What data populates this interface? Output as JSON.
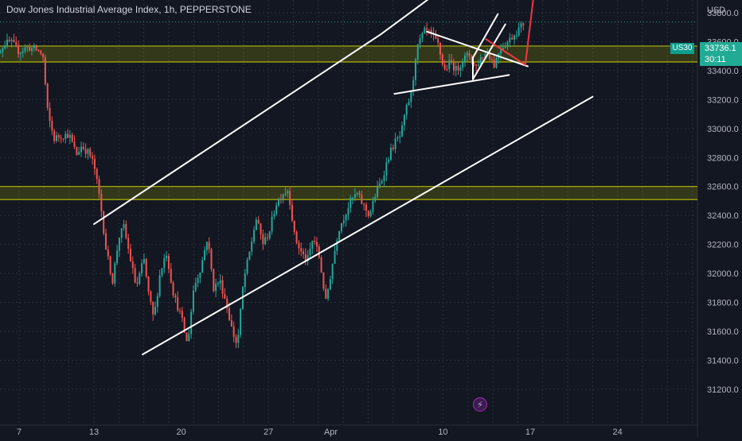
{
  "header": {
    "title": "Dow Jones Industrial Average Index, 1h, PEPPERSTONE",
    "currency": "USD"
  },
  "price_badge": {
    "symbol": "US30",
    "price": "33736.1",
    "countdown": "30:11"
  },
  "indicator_icon": "lightning-icon",
  "colors": {
    "background": "#131722",
    "candle_up": "#26a69a",
    "candle_down": "#ef5350",
    "zone": "#c8d100",
    "trendline": "#ffffff",
    "projection": "#f23645"
  },
  "chart_data": {
    "type": "candlestick",
    "title": "Dow Jones Industrial Average Index, 1h, PEPPERSTONE",
    "xlabel": "",
    "ylabel": "",
    "ylim": [
      31200,
      33950
    ],
    "grid": true,
    "y_ticks": [
      "33800.0",
      "33600.0",
      "33400.0",
      "33200.0",
      "33000.0",
      "32800.0",
      "32600.0",
      "32400.0",
      "32200.0",
      "32000.0",
      "31800.0",
      "31600.0",
      "31400.0",
      "31200.0"
    ],
    "x_ticks": [
      "7",
      "13",
      "20",
      "27",
      "Apr",
      "10",
      "17",
      "24"
    ],
    "x_tick_days": [
      7,
      13,
      20,
      27,
      32,
      41,
      48,
      55
    ],
    "last_price": 33736.1,
    "price_path": [
      [
        4.6,
        33450
      ],
      [
        5.2,
        33520
      ],
      [
        5.8,
        33580
      ],
      [
        6.3,
        33600
      ],
      [
        7.0,
        33530
      ],
      [
        7.6,
        33560
      ],
      [
        8.3,
        33550
      ],
      [
        8.9,
        33510
      ],
      [
        9.3,
        33100
      ],
      [
        9.8,
        32930
      ],
      [
        10.3,
        32950
      ],
      [
        11.0,
        32960
      ],
      [
        11.6,
        32820
      ],
      [
        12.0,
        32880
      ],
      [
        12.6,
        32830
      ],
      [
        13.0,
        32750
      ],
      [
        13.5,
        32500
      ],
      [
        14.0,
        32150
      ],
      [
        14.5,
        31950
      ],
      [
        15.0,
        32250
      ],
      [
        15.4,
        32320
      ],
      [
        15.8,
        32150
      ],
      [
        16.4,
        31900
      ],
      [
        17.0,
        32100
      ],
      [
        17.4,
        31850
      ],
      [
        17.8,
        31680
      ],
      [
        18.3,
        32000
      ],
      [
        18.8,
        32150
      ],
      [
        19.4,
        31850
      ],
      [
        20.0,
        31700
      ],
      [
        20.5,
        31500
      ],
      [
        21.0,
        31900
      ],
      [
        21.6,
        32050
      ],
      [
        22.1,
        32250
      ],
      [
        22.6,
        31900
      ],
      [
        23.1,
        31950
      ],
      [
        23.6,
        31800
      ],
      [
        24.1,
        31600
      ],
      [
        24.5,
        31500
      ],
      [
        25.0,
        31950
      ],
      [
        25.5,
        32150
      ],
      [
        26.0,
        32380
      ],
      [
        26.6,
        32200
      ],
      [
        27.1,
        32300
      ],
      [
        27.6,
        32480
      ],
      [
        28.1,
        32550
      ],
      [
        28.6,
        32580
      ],
      [
        29.1,
        32250
      ],
      [
        29.6,
        32150
      ],
      [
        30.1,
        32080
      ],
      [
        30.6,
        32250
      ],
      [
        31.1,
        32100
      ],
      [
        31.6,
        31800
      ],
      [
        32.1,
        32050
      ],
      [
        32.6,
        32300
      ],
      [
        33.1,
        32400
      ],
      [
        33.6,
        32500
      ],
      [
        34.1,
        32550
      ],
      [
        34.6,
        32470
      ],
      [
        35.1,
        32400
      ],
      [
        35.6,
        32550
      ],
      [
        36.1,
        32650
      ],
      [
        36.6,
        32800
      ],
      [
        37.1,
        32900
      ],
      [
        37.6,
        32950
      ],
      [
        38.1,
        33150
      ],
      [
        38.5,
        33250
      ],
      [
        38.8,
        33500
      ],
      [
        39.1,
        33600
      ],
      [
        39.6,
        33680
      ],
      [
        40.1,
        33640
      ],
      [
        40.6,
        33580
      ],
      [
        41.1,
        33400
      ],
      [
        41.6,
        33460
      ],
      [
        42.1,
        33400
      ],
      [
        42.6,
        33480
      ],
      [
        43.1,
        33510
      ],
      [
        43.6,
        33420
      ],
      [
        44.1,
        33500
      ],
      [
        44.6,
        33530
      ],
      [
        45.1,
        33440
      ],
      [
        45.6,
        33560
      ],
      [
        46.1,
        33590
      ],
      [
        46.6,
        33640
      ],
      [
        47.1,
        33690
      ],
      [
        47.6,
        33740
      ]
    ],
    "support_zones": [
      {
        "from": 33460,
        "to": 33570
      },
      {
        "from": 32510,
        "to": 32600
      }
    ],
    "trendlines": [
      {
        "name": "upper-channel",
        "points": [
          [
            13.0,
            32340
          ],
          [
            36.0,
            33650
          ],
          [
            41.5,
            34000
          ]
        ]
      },
      {
        "name": "lower-channel",
        "points": [
          [
            16.9,
            31440
          ],
          [
            53.0,
            33220
          ]
        ]
      },
      {
        "name": "triangle-upper",
        "points": [
          [
            39.7,
            33670
          ],
          [
            47.8,
            33430
          ]
        ]
      },
      {
        "name": "triangle-lower",
        "points": [
          [
            37.1,
            33240
          ],
          [
            46.3,
            33370
          ]
        ]
      },
      {
        "name": "rising-wedge-upper",
        "points": [
          [
            43.4,
            33490
          ],
          [
            45.4,
            33790
          ]
        ]
      },
      {
        "name": "rising-wedge-lower",
        "points": [
          [
            43.4,
            33340
          ],
          [
            46.0,
            33720
          ]
        ]
      },
      {
        "name": "wedge-base",
        "points": [
          [
            43.4,
            33340
          ],
          [
            43.4,
            33490
          ]
        ]
      }
    ],
    "projection": [
      [
        44.4,
        33620
      ],
      [
        47.6,
        33440
      ],
      [
        48.6,
        34150
      ]
    ]
  }
}
